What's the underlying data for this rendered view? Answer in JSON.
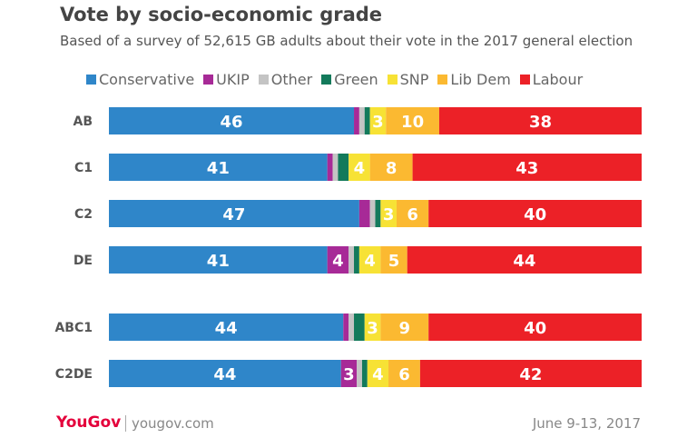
{
  "chart_data": {
    "type": "bar",
    "orientation": "horizontal-stacked",
    "title": "Vote by socio-economic grade",
    "subtitle": "Based of a survey of 52,615 GB adults about their vote in the 2017 general election",
    "categories": [
      "AB",
      "C1",
      "C2",
      "DE",
      "ABC1",
      "C2DE"
    ],
    "series": [
      {
        "name": "Conservative",
        "color": "#2f86c9",
        "values": [
          46,
          41,
          47,
          41,
          44,
          44
        ],
        "labeled": true
      },
      {
        "name": "UKIP",
        "color": "#a72a97",
        "values": [
          1,
          1,
          2,
          4,
          1,
          3
        ],
        "labeled": [
          false,
          false,
          false,
          true,
          false,
          true
        ]
      },
      {
        "name": "Other",
        "color": "#c4c4c4",
        "values": [
          1,
          1,
          1,
          1,
          1,
          1
        ],
        "labeled": false
      },
      {
        "name": "Green",
        "color": "#137a5b",
        "values": [
          1,
          2,
          1,
          1,
          2,
          1
        ],
        "labeled": false
      },
      {
        "name": "SNP",
        "color": "#f7e235",
        "values": [
          3,
          4,
          3,
          4,
          3,
          4
        ],
        "labeled": true
      },
      {
        "name": "Lib Dem",
        "color": "#fbb931",
        "values": [
          10,
          8,
          6,
          5,
          9,
          6
        ],
        "labeled": true
      },
      {
        "name": "Labour",
        "color": "#ec2127",
        "values": [
          38,
          43,
          40,
          44,
          40,
          42
        ],
        "labeled": true
      }
    ],
    "legend": "top"
  },
  "footer": {
    "logo": "YouGov",
    "site": "yougov.com",
    "date": "June 9-13, 2017"
  }
}
